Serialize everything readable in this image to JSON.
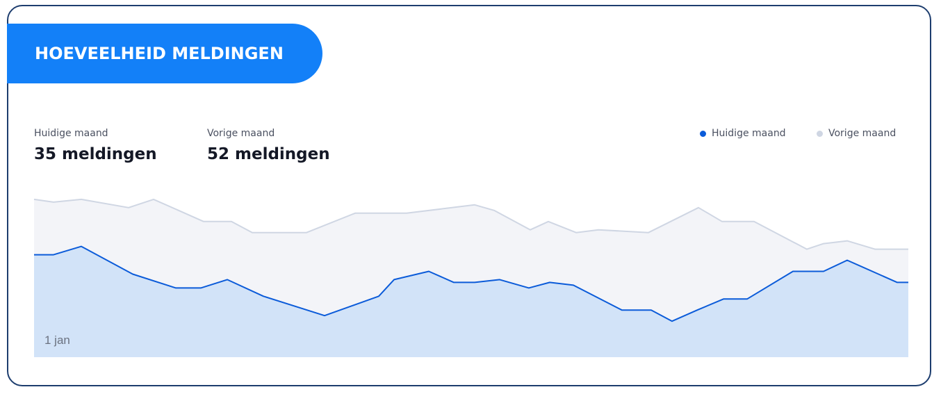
{
  "header": {
    "title": "HOEVEELHEID MELDINGEN"
  },
  "stats": {
    "current": {
      "label": "Huidige maand",
      "value": "35 meldingen"
    },
    "previous": {
      "label": "Vorige maand",
      "value": "52 meldingen"
    }
  },
  "legend": {
    "current": {
      "label": "Huidige maand",
      "color": "#0b5bd9"
    },
    "previous": {
      "label": "Vorige maand",
      "color": "#cfd6e3"
    }
  },
  "chart_data": {
    "type": "area",
    "x_tick_labels": [
      "1 jan"
    ],
    "ylim": [
      0,
      65
    ],
    "grid": false,
    "legend_position": "top-right",
    "series": [
      {
        "name": "Vorige maand",
        "color": "#cfd6e3",
        "fill": "#f3f4f8",
        "points": [
          [
            0,
            57
          ],
          [
            28,
            56
          ],
          [
            68,
            57
          ],
          [
            136,
            54
          ],
          [
            172,
            57
          ],
          [
            244,
            49
          ],
          [
            284,
            49
          ],
          [
            314,
            45
          ],
          [
            392,
            45
          ],
          [
            462,
            52
          ],
          [
            536,
            52
          ],
          [
            634,
            55
          ],
          [
            662,
            53
          ],
          [
            714,
            46
          ],
          [
            740,
            49
          ],
          [
            780,
            45
          ],
          [
            812,
            46
          ],
          [
            884,
            45
          ],
          [
            956,
            54
          ],
          [
            990,
            49
          ],
          [
            1036,
            49
          ],
          [
            1112,
            39
          ],
          [
            1136,
            41
          ],
          [
            1170,
            42
          ],
          [
            1210,
            39
          ],
          [
            1258,
            39
          ]
        ]
      },
      {
        "name": "Huidige maand",
        "color": "#0b5bd9",
        "fill": "#d2e3f8",
        "points": [
          [
            0,
            37
          ],
          [
            28,
            37
          ],
          [
            68,
            40
          ],
          [
            142,
            30
          ],
          [
            204,
            25
          ],
          [
            240,
            25
          ],
          [
            278,
            28
          ],
          [
            330,
            22
          ],
          [
            418,
            15
          ],
          [
            496,
            22
          ],
          [
            518,
            28
          ],
          [
            568,
            31
          ],
          [
            604,
            27
          ],
          [
            634,
            27
          ],
          [
            670,
            28
          ],
          [
            712,
            25
          ],
          [
            742,
            27
          ],
          [
            776,
            26
          ],
          [
            846,
            17
          ],
          [
            888,
            17
          ],
          [
            918,
            13
          ],
          [
            954,
            17
          ],
          [
            992,
            21
          ],
          [
            1026,
            21
          ],
          [
            1092,
            31
          ],
          [
            1136,
            31
          ],
          [
            1170,
            35
          ],
          [
            1242,
            27
          ],
          [
            1258,
            27
          ]
        ]
      }
    ]
  }
}
